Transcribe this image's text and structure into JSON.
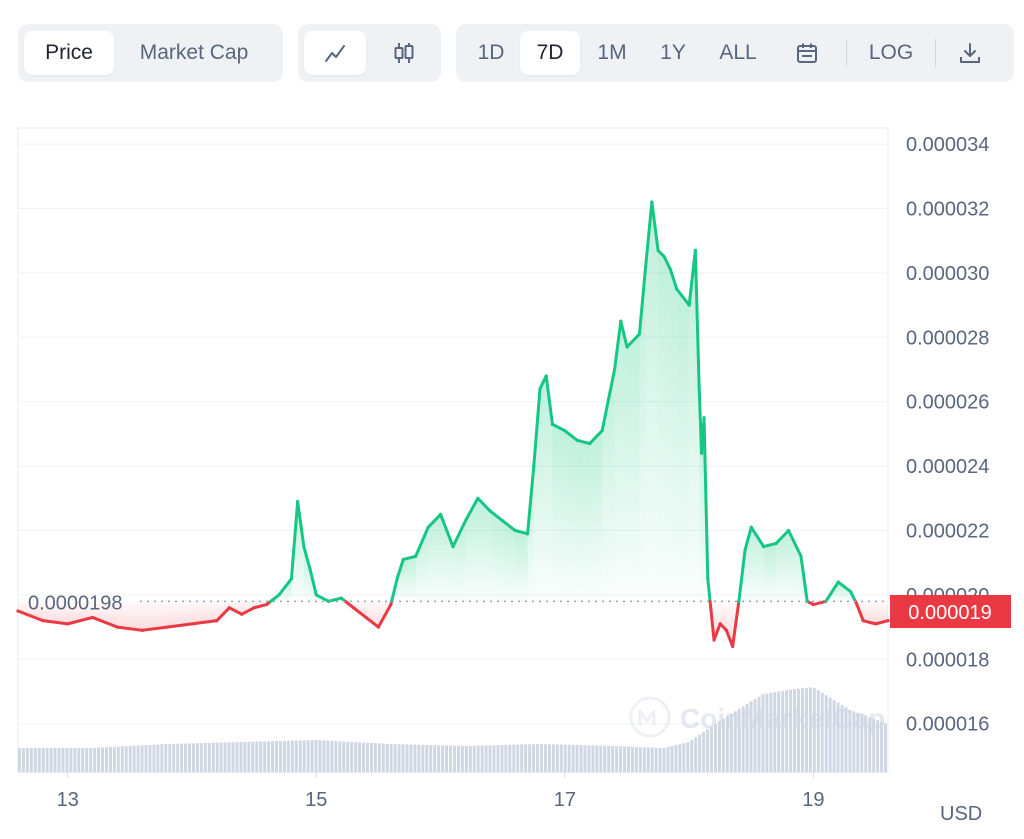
{
  "toolbar": {
    "type_tabs": [
      {
        "label": "Price",
        "active": true
      },
      {
        "label": "Market Cap",
        "active": false
      }
    ],
    "chart_modes": [
      {
        "icon": "line-chart-icon",
        "active": true
      },
      {
        "icon": "candlestick-icon",
        "active": false
      }
    ],
    "ranges": [
      {
        "label": "1D",
        "active": false
      },
      {
        "label": "7D",
        "active": true
      },
      {
        "label": "1M",
        "active": false
      },
      {
        "label": "1Y",
        "active": false
      },
      {
        "label": "ALL",
        "active": false
      }
    ],
    "calendar_icon": "calendar-icon",
    "log_label": "LOG",
    "download_icon": "download-icon"
  },
  "watermark": "CoinMarketCap",
  "currency": "USD",
  "colors": {
    "up": "#16c784",
    "down": "#ea3943",
    "grid": "#eff2f5",
    "reference_line": "#9aa3b1",
    "volume": "#cfd6e4"
  },
  "chart_data": {
    "type": "line",
    "series_name": "Price",
    "reference_value": 1.98e-05,
    "reference_label": "0.0000198",
    "current_value": 1.9e-05,
    "current_label": "0.000019",
    "ylim": [
      1.45e-05,
      3.45e-05
    ],
    "yticks": [
      1.6e-05,
      1.8e-05,
      2e-05,
      2.2e-05,
      2.4e-05,
      2.6e-05,
      2.8e-05,
      3e-05,
      3.2e-05,
      3.4e-05
    ],
    "ytick_labels": [
      "0.000016",
      "0.000018",
      "0.000020",
      "0.000022",
      "0.000024",
      "0.000026",
      "0.000028",
      "0.000030",
      "0.000032",
      "0.000034"
    ],
    "xlim": [
      12.6,
      19.6
    ],
    "xticks": [
      13,
      15,
      17,
      19
    ],
    "xtick_labels": [
      "13",
      "15",
      "17",
      "19"
    ],
    "x": [
      12.6,
      12.8,
      13.0,
      13.2,
      13.4,
      13.6,
      13.8,
      14.0,
      14.2,
      14.3,
      14.4,
      14.5,
      14.6,
      14.7,
      14.8,
      14.85,
      14.9,
      14.95,
      15.0,
      15.1,
      15.2,
      15.3,
      15.4,
      15.5,
      15.6,
      15.65,
      15.7,
      15.8,
      15.9,
      16.0,
      16.1,
      16.2,
      16.3,
      16.4,
      16.5,
      16.6,
      16.7,
      16.75,
      16.8,
      16.85,
      16.9,
      17.0,
      17.1,
      17.2,
      17.3,
      17.4,
      17.45,
      17.5,
      17.6,
      17.65,
      17.7,
      17.75,
      17.8,
      17.85,
      17.9,
      18.0,
      18.05,
      18.08,
      18.1,
      18.12,
      18.15,
      18.2,
      18.25,
      18.3,
      18.35,
      18.4,
      18.45,
      18.5,
      18.6,
      18.7,
      18.8,
      18.9,
      18.95,
      19.0,
      19.1,
      19.2,
      19.3,
      19.35,
      19.4,
      19.5,
      19.6
    ],
    "y": [
      1.95e-05,
      1.92e-05,
      1.91e-05,
      1.93e-05,
      1.9e-05,
      1.89e-05,
      1.9e-05,
      1.91e-05,
      1.92e-05,
      1.96e-05,
      1.94e-05,
      1.96e-05,
      1.97e-05,
      2e-05,
      2.05e-05,
      2.29e-05,
      2.15e-05,
      2.08e-05,
      2e-05,
      1.98e-05,
      1.99e-05,
      1.96e-05,
      1.93e-05,
      1.9e-05,
      1.97e-05,
      2.05e-05,
      2.11e-05,
      2.12e-05,
      2.21e-05,
      2.25e-05,
      2.15e-05,
      2.23e-05,
      2.3e-05,
      2.26e-05,
      2.23e-05,
      2.2e-05,
      2.19e-05,
      2.4e-05,
      2.64e-05,
      2.68e-05,
      2.53e-05,
      2.51e-05,
      2.48e-05,
      2.47e-05,
      2.51e-05,
      2.7e-05,
      2.85e-05,
      2.77e-05,
      2.81e-05,
      3.02e-05,
      3.22e-05,
      3.07e-05,
      3.05e-05,
      3.01e-05,
      2.95e-05,
      2.9e-05,
      3.07e-05,
      2.65e-05,
      2.44e-05,
      2.55e-05,
      2.05e-05,
      1.86e-05,
      1.91e-05,
      1.89e-05,
      1.84e-05,
      1.98e-05,
      2.14e-05,
      2.21e-05,
      2.15e-05,
      2.16e-05,
      2.2e-05,
      2.12e-05,
      1.98e-05,
      1.97e-05,
      1.98e-05,
      2.04e-05,
      2.01e-05,
      1.97e-05,
      1.92e-05,
      1.91e-05,
      1.92e-05
    ],
    "volume": {
      "x": [
        12.6,
        13.2,
        13.8,
        14.4,
        15.0,
        15.6,
        16.2,
        16.8,
        17.4,
        17.8,
        18.0,
        18.3,
        18.6,
        18.8,
        19.0,
        19.3,
        19.6
      ],
      "v": [
        0.24,
        0.24,
        0.28,
        0.3,
        0.32,
        0.28,
        0.26,
        0.28,
        0.26,
        0.24,
        0.3,
        0.55,
        0.78,
        0.82,
        0.85,
        0.62,
        0.48
      ]
    },
    "grid": true
  }
}
